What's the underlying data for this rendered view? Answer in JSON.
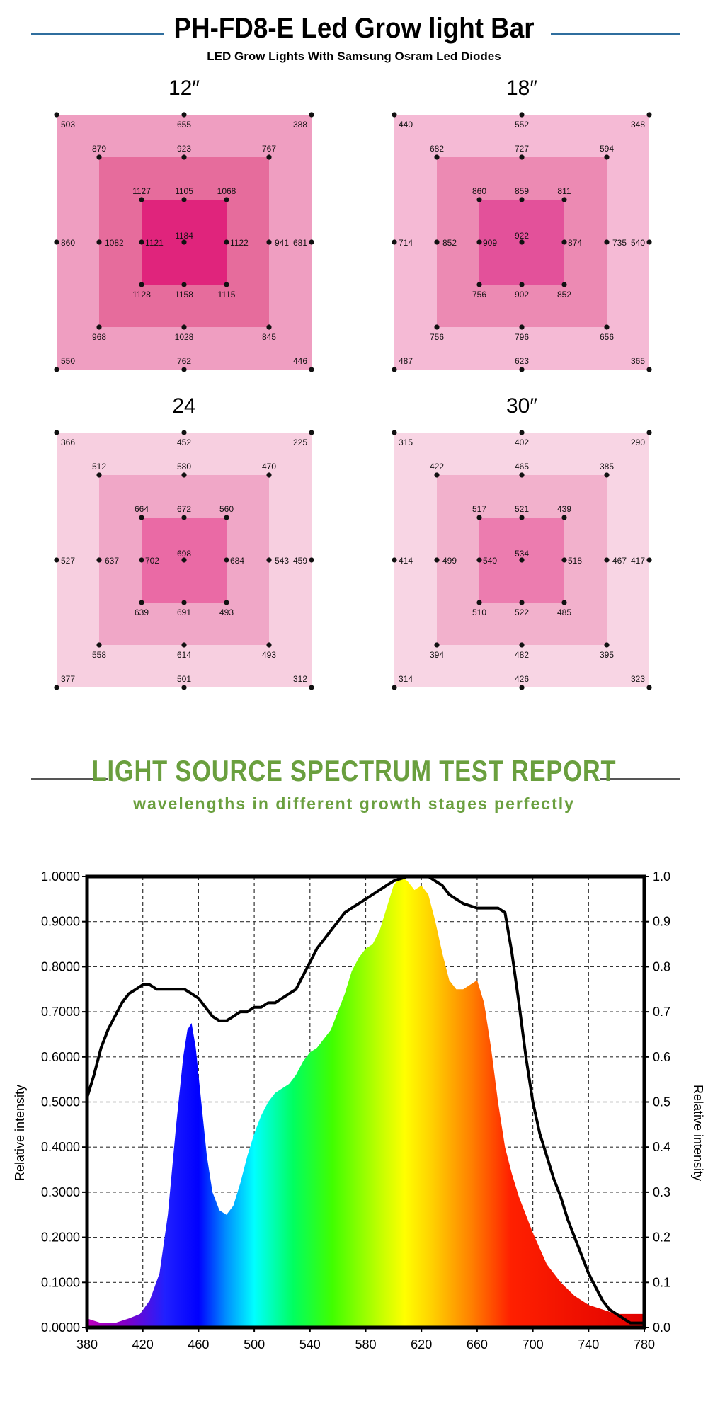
{
  "header": {
    "title": "PH-FD8-E Led Grow  light Bar",
    "subtitle": "LED Grow Lights With Samsung Osram Led Diodes",
    "line_color": "#2f6e9e"
  },
  "ppfd_panels": [
    {
      "label": "12″",
      "colors": [
        "#ef9ec1",
        "#e66c9c",
        "#e0247c"
      ],
      "outer": [
        "503",
        "655",
        "388",
        "681",
        "446",
        "762",
        "550",
        "860"
      ],
      "middle": [
        "879",
        "923",
        "767",
        "941",
        "845",
        "1028",
        "968",
        "1082"
      ],
      "inner": [
        "1127",
        "1105",
        "1068",
        "1122",
        "1115",
        "1158",
        "1128",
        "1121"
      ],
      "center": "1184"
    },
    {
      "label": "18″",
      "colors": [
        "#f5bad5",
        "#ec8ab3",
        "#e3519a"
      ],
      "outer": [
        "440",
        "552",
        "348",
        "540",
        "365",
        "623",
        "487",
        "714"
      ],
      "middle": [
        "682",
        "727",
        "594",
        "735",
        "656",
        "796",
        "756",
        "852"
      ],
      "inner": [
        "860",
        "859",
        "811",
        "874",
        "852",
        "902",
        "756",
        "909"
      ],
      "center": "922"
    },
    {
      "label": "24",
      "colors": [
        "#f7cfe0",
        "#f0a7c7",
        "#ea6aa5"
      ],
      "outer": [
        "366",
        "452",
        "225",
        "459",
        "312",
        "501",
        "377",
        "527"
      ],
      "middle": [
        "512",
        "580",
        "470",
        "543",
        "493",
        "614",
        "558",
        "637"
      ],
      "inner": [
        "664",
        "672",
        "560",
        "684",
        "493",
        "691",
        "639",
        "702"
      ],
      "center": "698"
    },
    {
      "label": "30″",
      "colors": [
        "#f8d5e4",
        "#f2b1cc",
        "#ec7caf"
      ],
      "outer": [
        "315",
        "402",
        "290",
        "417",
        "323",
        "426",
        "314",
        "414"
      ],
      "middle": [
        "422",
        "465",
        "385",
        "467",
        "395",
        "482",
        "394",
        "499"
      ],
      "inner": [
        "517",
        "521",
        "439",
        "518",
        "485",
        "522",
        "510",
        "540"
      ],
      "center": "534"
    }
  ],
  "spectrum_section": {
    "title": "LIGHT SOURCE SPECTRUM TEST REPORT",
    "subtitle": "wavelengths in different growth stages perfectly",
    "accent": "#6a9f3e"
  },
  "chart_data": {
    "type": "area",
    "ylabel": "Relative intensity",
    "y2label": "Relative intensity",
    "xlim": [
      380,
      780
    ],
    "ylim": [
      0,
      1
    ],
    "grid": true,
    "x_ticks": [
      "380",
      "420",
      "460",
      "500",
      "540",
      "580",
      "620",
      "660",
      "700",
      "740",
      "780"
    ],
    "y_ticks_left": [
      "0.0000",
      "0.1000",
      "0.2000",
      "0.3000",
      "0.4000",
      "0.5000",
      "0.6000",
      "0.7000",
      "0.8000",
      "0.9000",
      "1.0000"
    ],
    "y_ticks_right": [
      "0.0",
      "0.1",
      "0.2",
      "0.3",
      "0.4",
      "0.5",
      "0.6",
      "0.7",
      "0.8",
      "0.9",
      "1.0"
    ],
    "series": [
      {
        "x": [
          380,
          390,
          400,
          410,
          418,
          425,
          432,
          438,
          444,
          449,
          452,
          455,
          458,
          462,
          466,
          470,
          475,
          480,
          485,
          490,
          495,
          500,
          505,
          510,
          515,
          520,
          525,
          530,
          535,
          540,
          545,
          550,
          555,
          560,
          565,
          570,
          575,
          580,
          585,
          590,
          595,
          600,
          605,
          610,
          615,
          620,
          625,
          630,
          635,
          640,
          645,
          650,
          655,
          660,
          665,
          670,
          675,
          680,
          685,
          690,
          700,
          710,
          720,
          730,
          740,
          750,
          760,
          770,
          780
        ],
        "y": [
          0.02,
          0.01,
          0.01,
          0.02,
          0.03,
          0.06,
          0.12,
          0.25,
          0.45,
          0.6,
          0.66,
          0.675,
          0.62,
          0.5,
          0.38,
          0.3,
          0.26,
          0.25,
          0.27,
          0.32,
          0.38,
          0.43,
          0.47,
          0.5,
          0.52,
          0.53,
          0.54,
          0.56,
          0.59,
          0.61,
          0.62,
          0.64,
          0.66,
          0.7,
          0.74,
          0.79,
          0.82,
          0.84,
          0.85,
          0.88,
          0.93,
          0.98,
          1.0,
          0.99,
          0.97,
          0.98,
          0.96,
          0.9,
          0.83,
          0.77,
          0.75,
          0.75,
          0.76,
          0.77,
          0.72,
          0.62,
          0.5,
          0.4,
          0.34,
          0.29,
          0.21,
          0.14,
          0.1,
          0.07,
          0.05,
          0.04,
          0.03,
          0.03,
          0.03
        ]
      },
      {
        "x": [
          380,
          385,
          390,
          395,
          400,
          405,
          410,
          415,
          420,
          425,
          430,
          440,
          450,
          455,
          460,
          465,
          470,
          475,
          480,
          485,
          490,
          495,
          500,
          505,
          510,
          515,
          520,
          525,
          530,
          535,
          540,
          545,
          550,
          555,
          560,
          565,
          570,
          575,
          580,
          585,
          590,
          595,
          600,
          610,
          615,
          620,
          625,
          630,
          635,
          640,
          645,
          650,
          660,
          665,
          670,
          675,
          680,
          685,
          690,
          695,
          700,
          705,
          710,
          715,
          720,
          725,
          730,
          735,
          740,
          745,
          750,
          755,
          760,
          765,
          770,
          780
        ],
        "y": [
          0.51,
          0.56,
          0.62,
          0.66,
          0.69,
          0.72,
          0.74,
          0.75,
          0.76,
          0.76,
          0.75,
          0.75,
          0.75,
          0.74,
          0.73,
          0.71,
          0.69,
          0.68,
          0.68,
          0.69,
          0.7,
          0.7,
          0.71,
          0.71,
          0.72,
          0.72,
          0.73,
          0.74,
          0.75,
          0.78,
          0.81,
          0.84,
          0.86,
          0.88,
          0.9,
          0.92,
          0.93,
          0.94,
          0.95,
          0.96,
          0.97,
          0.98,
          0.99,
          1.0,
          1.0,
          1.0,
          1.0,
          0.99,
          0.98,
          0.96,
          0.95,
          0.94,
          0.93,
          0.93,
          0.93,
          0.93,
          0.92,
          0.83,
          0.72,
          0.6,
          0.5,
          0.43,
          0.38,
          0.33,
          0.29,
          0.24,
          0.2,
          0.16,
          0.12,
          0.09,
          0.06,
          0.04,
          0.03,
          0.02,
          0.01,
          0.01
        ]
      }
    ]
  }
}
